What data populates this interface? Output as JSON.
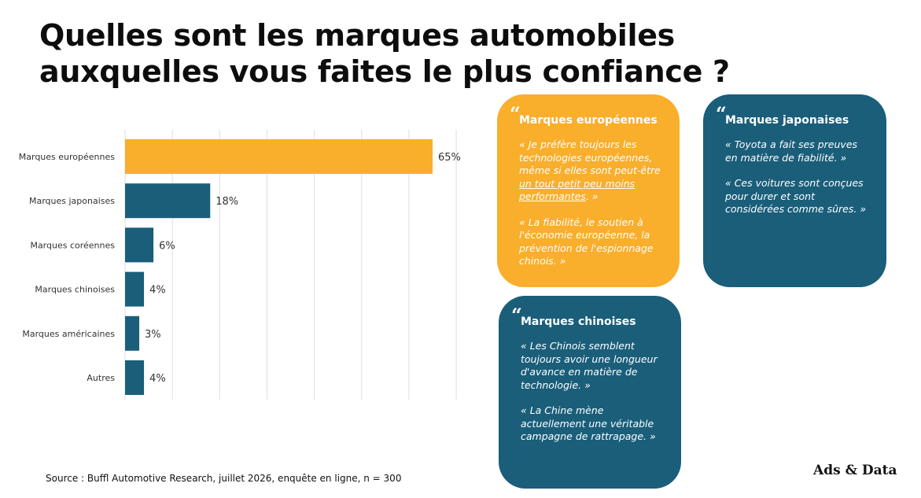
{
  "title": "Quelles sont les marques automobiles auxquelles vous faites le plus confiance ?",
  "chart_data": {
    "type": "bar",
    "orientation": "horizontal",
    "categories": [
      "Marques européennes",
      "Marques japonaises",
      "Marques coréennes",
      "Marques chinoises",
      "Marques américaines",
      "Autres"
    ],
    "values": [
      65,
      18,
      6,
      4,
      3,
      4
    ],
    "labels": [
      "65%",
      "18%",
      "6%",
      "4%",
      "3%",
      "4%"
    ],
    "xlim": [
      0,
      70
    ],
    "grid": "vertical",
    "colors": [
      "#F9AE2C",
      "#1A5E7A",
      "#1A5E7A",
      "#1A5E7A",
      "#1A5E7A",
      "#1A5E7A"
    ]
  },
  "cards": {
    "europe": {
      "heading": "Marques européennes",
      "quote1_before": "« Je préfère toujours les technologies européennes, même si elles sont peut-être ",
      "quote1_underlined": "un tout petit peu moins performantes",
      "quote1_after": ". »",
      "quote2": "« La fiabilité, le soutien à l'économie européenne, la prévention de l'espionnage chinois. »"
    },
    "japan": {
      "heading": "Marques japonaises",
      "quote1": "« Toyota a fait ses preuves en matière de fiabilité. »",
      "quote2": "« Ces voitures sont conçues pour durer et sont considérées comme sûres. »"
    },
    "china": {
      "heading": "Marques chinoises",
      "quote1": "« Les Chinois semblent toujours avoir une longueur d'avance en matière de technologie. »",
      "quote2": "« La Chine mène actuellement une véritable campagne de rattrapage. »"
    }
  },
  "source": "Source : Buffl Automotive Research, juillet 2026, enquête en ligne, n = 300",
  "logo": "Ads & Data"
}
